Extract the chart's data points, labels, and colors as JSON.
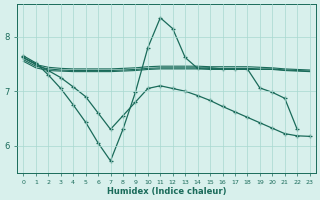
{
  "xlabel": "Humidex (Indice chaleur)",
  "background_color": "#d8f0ec",
  "line_color": "#1a6b5a",
  "grid_color": "#a8d8d0",
  "xlim": [
    -0.5,
    23.5
  ],
  "ylim": [
    5.5,
    8.6
  ],
  "yticks": [
    6,
    7,
    8
  ],
  "xticks": [
    0,
    1,
    2,
    3,
    4,
    5,
    6,
    7,
    8,
    9,
    10,
    11,
    12,
    13,
    14,
    15,
    16,
    17,
    18,
    19,
    20,
    21,
    22,
    23
  ],
  "flat1_y": [
    7.55,
    7.43,
    7.38,
    7.37,
    7.36,
    7.36,
    7.36,
    7.36,
    7.37,
    7.38,
    7.4,
    7.41,
    7.41,
    7.41,
    7.41,
    7.4,
    7.4,
    7.4,
    7.4,
    7.4,
    7.4,
    7.38,
    7.37,
    7.36
  ],
  "flat2_y": [
    7.58,
    7.46,
    7.41,
    7.39,
    7.38,
    7.38,
    7.38,
    7.38,
    7.39,
    7.4,
    7.42,
    7.43,
    7.43,
    7.43,
    7.43,
    7.42,
    7.42,
    7.42,
    7.42,
    7.41,
    7.41,
    7.39,
    7.38,
    7.37
  ],
  "flat3_y": [
    7.61,
    7.49,
    7.44,
    7.42,
    7.41,
    7.41,
    7.41,
    7.41,
    7.42,
    7.43,
    7.45,
    7.46,
    7.46,
    7.46,
    7.46,
    7.45,
    7.45,
    7.45,
    7.45,
    7.44,
    7.43,
    7.41,
    7.4,
    7.39
  ],
  "peak_y": [
    7.65,
    7.52,
    7.3,
    7.05,
    6.75,
    6.43,
    6.05,
    5.72,
    6.3,
    6.98,
    7.8,
    8.35,
    8.15,
    7.62,
    7.42,
    7.43,
    7.41,
    7.41,
    7.41,
    7.06,
    6.98,
    6.87,
    6.3,
    null
  ],
  "desc_y": [
    7.62,
    7.5,
    7.38,
    7.25,
    7.08,
    6.9,
    6.6,
    6.3,
    6.55,
    6.8,
    7.05,
    7.1,
    7.05,
    7.0,
    6.92,
    6.83,
    6.72,
    6.62,
    6.52,
    6.42,
    6.32,
    6.22,
    6.18,
    6.17
  ]
}
